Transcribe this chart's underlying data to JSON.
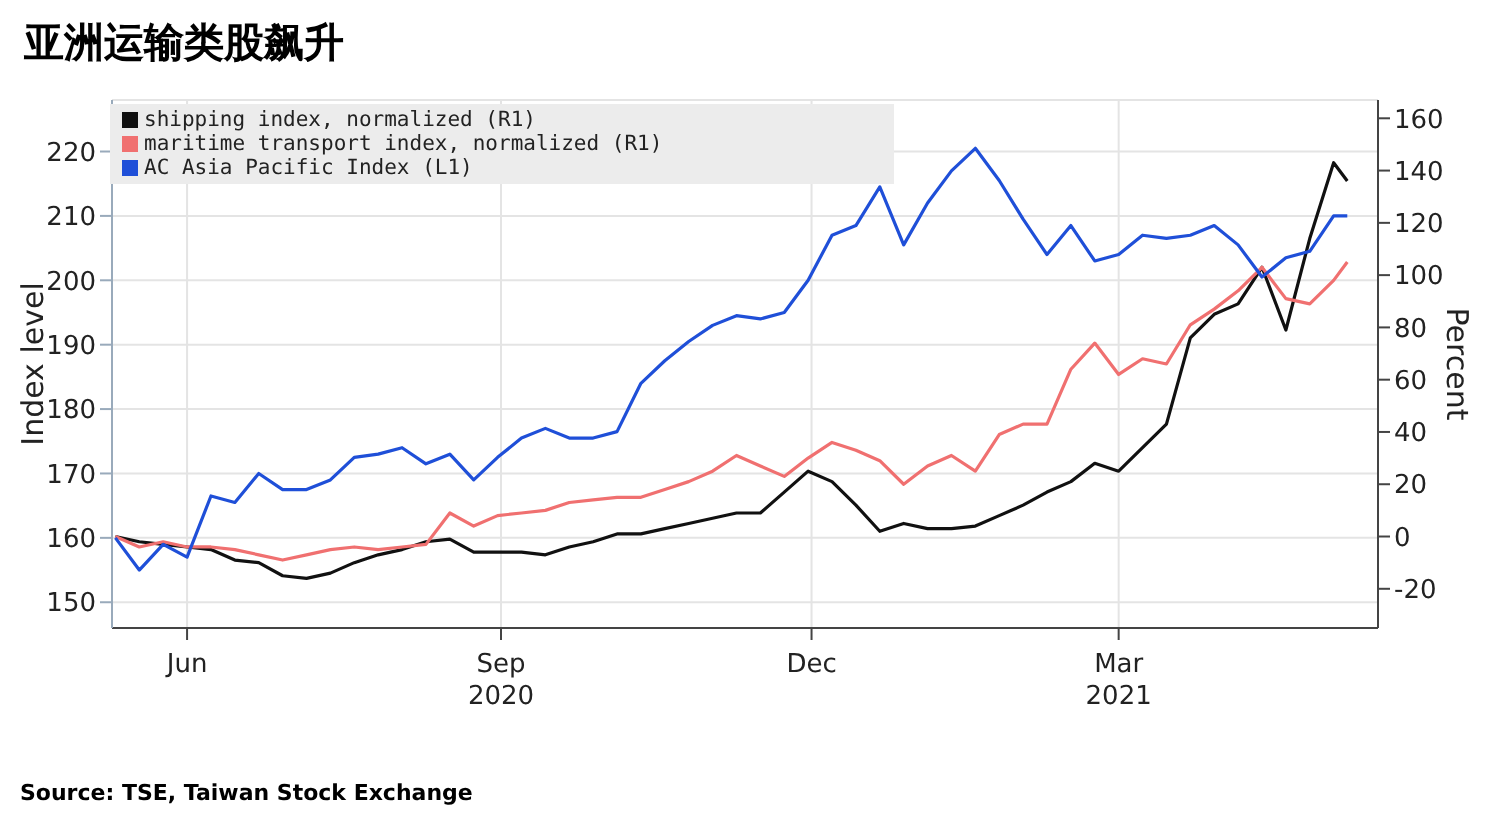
{
  "chart_data": {
    "type": "line",
    "title": "亚洲运输类股飙升",
    "ylabel": "Index level",
    "y2label": "Percent",
    "annotations": [
      "Source: TSE, Taiwan Stock Exchange"
    ],
    "x": [
      "2020-05-11",
      "2020-05-18",
      "2020-05-25",
      "2020-06-01",
      "2020-06-08",
      "2020-06-15",
      "2020-06-22",
      "2020-06-29",
      "2020-07-06",
      "2020-07-13",
      "2020-07-20",
      "2020-07-27",
      "2020-08-03",
      "2020-08-10",
      "2020-08-17",
      "2020-08-24",
      "2020-08-31",
      "2020-09-07",
      "2020-09-14",
      "2020-09-21",
      "2020-09-28",
      "2020-10-05",
      "2020-10-12",
      "2020-10-19",
      "2020-10-26",
      "2020-11-02",
      "2020-11-09",
      "2020-11-16",
      "2020-11-23",
      "2020-11-30",
      "2020-12-07",
      "2020-12-14",
      "2020-12-21",
      "2020-12-28",
      "2021-01-04",
      "2021-01-11",
      "2021-01-18",
      "2021-01-25",
      "2021-02-01",
      "2021-02-08",
      "2021-02-15",
      "2021-02-22",
      "2021-03-01",
      "2021-03-08",
      "2021-03-15",
      "2021-03-22",
      "2021-03-29",
      "2021-04-05",
      "2021-04-12",
      "2021-04-19",
      "2021-04-26",
      "2021-05-03",
      "2021-05-07"
    ],
    "series": [
      {
        "name": "shipping index, normalized (R1)",
        "color": "#111111",
        "axis": "y2",
        "values": [
          0,
          -2,
          -3,
          -4,
          -5,
          -9,
          -10,
          -15,
          -16,
          -14,
          -10,
          -7,
          -5,
          -2,
          -1,
          -6,
          -6,
          -6,
          -7,
          -4,
          -2,
          1,
          1,
          3,
          5,
          7,
          9,
          9,
          17,
          25,
          21,
          12,
          2,
          5,
          3,
          3,
          4,
          8,
          12,
          17,
          21,
          28,
          25,
          34,
          43,
          76,
          85,
          89,
          103,
          79,
          114,
          143,
          136
        ]
      },
      {
        "name": "maritime transport index, normalized (R1)",
        "color": "#f07070",
        "axis": "y2",
        "values": [
          0,
          -4,
          -2,
          -4,
          -4,
          -5,
          -7,
          -9,
          -7,
          -5,
          -4,
          -5,
          -4,
          -3,
          9,
          4,
          8,
          9,
          10,
          13,
          14,
          15,
          15,
          18,
          21,
          25,
          31,
          27,
          23,
          30,
          36,
          33,
          29,
          20,
          27,
          31,
          25,
          39,
          43,
          43,
          64,
          74,
          62,
          68,
          66,
          81,
          87,
          94,
          103,
          91,
          89,
          98,
          105
        ]
      },
      {
        "name": "AC Asia Pacific Index (L1)",
        "color": "#1f4fd8",
        "axis": "y",
        "values": [
          160,
          155,
          159,
          157,
          166.5,
          165.5,
          170,
          167.5,
          167.5,
          169,
          172.5,
          173,
          174,
          171.5,
          173,
          169,
          172.5,
          175.5,
          177,
          175.5,
          175.5,
          176.5,
          184,
          187.5,
          190.5,
          193,
          194.5,
          194,
          195,
          200,
          207,
          208.5,
          214.5,
          205.5,
          212,
          217,
          220.5,
          215.5,
          209.5,
          204,
          208.5,
          203,
          204,
          207,
          206.5,
          207,
          208.5,
          205.5,
          200.5,
          203.5,
          204.5,
          210,
          210
        ]
      }
    ],
    "xlim": [
      "2020-05-10",
      "2021-05-16"
    ],
    "xticks": [
      {
        "value": "2020-06-01",
        "label": "Jun"
      },
      {
        "value": "2020-09-01",
        "label": "Sep 2020"
      },
      {
        "value": "2020-12-01",
        "label": "Dec"
      },
      {
        "value": "2021-03-01",
        "label": "Mar 2021"
      }
    ],
    "ylim": [
      146,
      228
    ],
    "yticks": [
      150,
      160,
      170,
      180,
      190,
      200,
      210,
      220
    ],
    "y2lim": [
      -35,
      167
    ],
    "y2ticks": [
      -20,
      0,
      20,
      40,
      60,
      80,
      100,
      120,
      140,
      160
    ],
    "grid": true,
    "legend": "top left",
    "marker": "none",
    "line_style": "solid"
  }
}
